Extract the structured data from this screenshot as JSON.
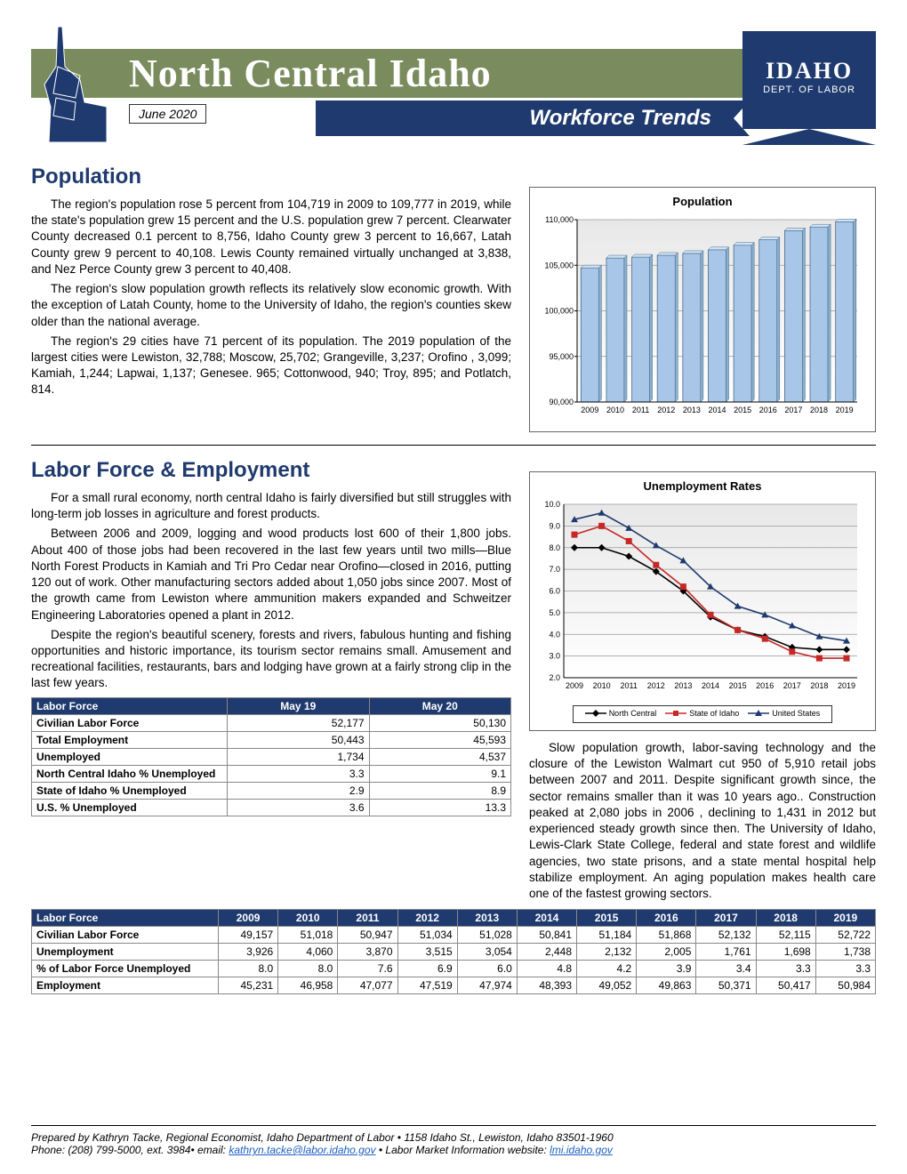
{
  "header": {
    "title": "North Central Idaho",
    "date": "June 2020",
    "subtitle": "Workforce Trends",
    "badge_line1": "IDAHO",
    "badge_line2": "DEPT. OF LABOR"
  },
  "population": {
    "title": "Population",
    "paragraphs": [
      "The region's population rose 5 percent from 104,719 in 2009 to 109,777 in 2019, while the state's population grew 15 percent and the U.S. population grew 7 percent. Clearwater County decreased 0.1 percent to 8,756, Idaho County grew 3 percent to 16,667, Latah County grew 9 percent to 40,108. Lewis County remained virtually unchanged at 3,838, and Nez Perce County grew 3 percent to 40,408.",
      "The region's slow population growth reflects its relatively slow economic growth.  With the exception of Latah County, home to the University of Idaho, the region's counties skew older than the national average.",
      "The region's 29 cities have 71 percent of its population. The 2019 population of the largest cities were Lewiston, 32,788; Moscow, 25,702; Grangeville, 3,237; Orofino , 3,099; Kamiah, 1,244; Lapwai, 1,137; Genesee. 965; Cottonwood, 940; Troy, 895; and Potlatch, 814."
    ],
    "chart": {
      "type": "bar",
      "title": "Population",
      "years": [
        "2009",
        "2010",
        "2011",
        "2012",
        "2013",
        "2014",
        "2015",
        "2016",
        "2017",
        "2018",
        "2019"
      ],
      "values": [
        104719,
        105800,
        105900,
        106100,
        106300,
        106700,
        107200,
        107800,
        108800,
        109200,
        109777
      ],
      "ylim": [
        90000,
        110000
      ],
      "ytick_step": 5000,
      "bar_color": "#a8c6e8",
      "bar_border": "#4a6a8a",
      "grid_color": "#999999",
      "bg_gradient_top": "#e8e8e8",
      "bg_gradient_bottom": "#ffffff",
      "label_fontsize": 9
    }
  },
  "labor": {
    "title": "Labor Force & Employment",
    "paragraphs_left": [
      "For a small rural economy, north central Idaho is fairly diversified but still struggles with long-term job losses in agriculture and forest products.",
      "Between 2006 and 2009, logging and wood products lost 600 of their 1,800 jobs. About 400 of those jobs had been recovered in the last few years until two mills—Blue North Forest Products in Kamiah and Tri Pro Cedar near Orofino—closed in 2016, putting 120 out of work. Other manufacturing sectors added about 1,050 jobs since 2007. Most of the growth came from Lewiston where ammunition makers  expanded and Schweitzer Engineering Laboratories opened a plant in 2012.",
      "Despite the region's beautiful scenery, forests and rivers, fabulous hunting and fishing opportunities and historic importance, its tourism sector remains small. Amusement and recreational facilities, restaurants, bars and lodging have grown at a fairly strong clip in the last few years."
    ],
    "paragraph_right": "Slow population growth, labor-saving technology and the closure of the Lewiston Walmart cut 950 of 5,910 retail jobs between 2007 and 2011. Despite significant growth since, the sector remains smaller than it was 10 years ago.. Construction peaked at 2,080 jobs in 2006 , declining to 1,431 in 2012 but experienced steady growth since then. The University of Idaho, Lewis-Clark State College, federal and state forest and wildlife agencies, two state prisons, and a state mental hospital help stabilize employment. An aging population makes health care one of the fastest growing sectors.",
    "unemployment_chart": {
      "type": "line",
      "title": "Unemployment Rates",
      "years": [
        "2009",
        "2010",
        "2011",
        "2012",
        "2013",
        "2014",
        "2015",
        "2016",
        "2017",
        "2018",
        "2019"
      ],
      "series": [
        {
          "name": "North Central",
          "color": "#000000",
          "marker": "diamond",
          "values": [
            8.0,
            8.0,
            7.6,
            6.9,
            6.0,
            4.8,
            4.2,
            3.9,
            3.4,
            3.3,
            3.3
          ]
        },
        {
          "name": "State of Idaho",
          "color": "#c62828",
          "marker": "square",
          "values": [
            8.6,
            9.0,
            8.3,
            7.2,
            6.2,
            4.9,
            4.2,
            3.8,
            3.2,
            2.9,
            2.9
          ]
        },
        {
          "name": "United States",
          "color": "#1f3a6e",
          "marker": "triangle",
          "values": [
            9.3,
            9.6,
            8.9,
            8.1,
            7.4,
            6.2,
            5.3,
            4.9,
            4.4,
            3.9,
            3.7
          ]
        }
      ],
      "ylim": [
        2.0,
        10.0
      ],
      "ytick_step": 1.0,
      "grid_color": "#999999",
      "bg_gradient_top": "#e8e8e8",
      "bg_gradient_bottom": "#ffffff"
    },
    "small_table": {
      "header": [
        "Labor Force",
        "May 19",
        "May 20"
      ],
      "rows": [
        [
          "Civilian Labor Force",
          "52,177",
          "50,130"
        ],
        [
          " Total Employment",
          "50,443",
          "45,593"
        ],
        [
          " Unemployed",
          "1,734",
          "4,537"
        ],
        [
          "North Central Idaho % Unemployed",
          "3.3",
          "9.1"
        ],
        [
          "State of Idaho % Unemployed",
          "2.9",
          "8.9"
        ],
        [
          "U.S. % Unemployed",
          "3.6",
          "13.3"
        ]
      ]
    },
    "wide_table": {
      "header": [
        "Labor Force",
        "2009",
        "2010",
        "2011",
        "2012",
        "2013",
        "2014",
        "2015",
        "2016",
        "2017",
        "2018",
        "2019"
      ],
      "rows": [
        [
          " Civilian Labor Force",
          "49,157",
          "51,018",
          "50,947",
          "51,034",
          "51,028",
          "50,841",
          "51,184",
          "51,868",
          "52,132",
          "52,115",
          "52,722"
        ],
        [
          " Unemployment",
          "3,926",
          "4,060",
          "3,870",
          "3,515",
          "3,054",
          "2,448",
          "2,132",
          "2,005",
          "1,761",
          "1,698",
          "1,738"
        ],
        [
          "% of Labor Force Unemployed",
          "8.0",
          "8.0",
          "7.6",
          "6.9",
          "6.0",
          "4.8",
          "4.2",
          "3.9",
          "3.4",
          "3.3",
          "3.3"
        ],
        [
          " Employment",
          "45,231",
          "46,958",
          "47,077",
          "47,519",
          "47,974",
          "48,393",
          "49,052",
          "49,863",
          "50,371",
          "50,417",
          "50,984"
        ]
      ]
    }
  },
  "footer": {
    "line1_a": "Prepared by Kathryn Tacke, Regional Economist, Idaho Department of Labor  •  1158 Idaho St., Lewiston, Idaho 83501-1960",
    "line2_prefix": "Phone:  (208) 799-5000, ext. 3984•  email: ",
    "email": "kathryn.tacke@labor.idaho.gov",
    "line2_mid": " • Labor Market Information website: ",
    "website": "lmi.idaho.gov"
  }
}
